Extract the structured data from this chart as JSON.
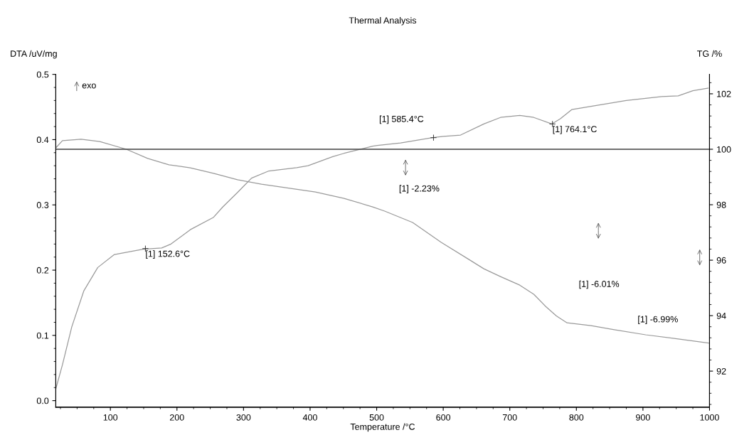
{
  "chart_data": {
    "type": "line",
    "title": "Thermal Analysis",
    "xlabel": "Temperature /°C",
    "ylabel": "DTA /uV/mg",
    "y2label": "TG /%",
    "xlim": [
      18,
      1000
    ],
    "xticks": [
      100,
      200,
      300,
      400,
      500,
      600,
      700,
      800,
      900,
      1000
    ],
    "ylim": [
      -0.01,
      0.5
    ],
    "yticks": [
      {
        "value": 0,
        "label": "0.0"
      },
      0.1,
      0.2,
      0.3,
      0.4,
      0.5
    ],
    "y2lim": [
      90.7,
      102.7
    ],
    "y2ticks": [
      92,
      94,
      96,
      98,
      100,
      102
    ],
    "grid": false,
    "series": [
      {
        "color": "#9a9a9a",
        "x": [
          18,
          28,
          42,
          60,
          81,
          106,
          149,
          177,
          191,
          220,
          255,
          269,
          291,
          312,
          338,
          380,
          397,
          434,
          451,
          494,
          501,
          536,
          584,
          600,
          626,
          661,
          686,
          715,
          736,
          763,
          776,
          793,
          822,
          875,
          928,
          953,
          975,
          998
        ],
        "values": [
          0.018,
          0.055,
          0.113,
          0.168,
          0.204,
          0.224,
          0.232,
          0.234,
          0.24,
          0.262,
          0.281,
          0.297,
          0.319,
          0.341,
          0.352,
          0.357,
          0.36,
          0.374,
          0.379,
          0.39,
          0.391,
          0.395,
          0.403,
          0.405,
          0.407,
          0.424,
          0.434,
          0.437,
          0.434,
          0.424,
          0.432,
          0.446,
          0.451,
          0.46,
          0.466,
          0.467,
          0.475,
          0.479
        ]
      },
      {
        "color": "#9a9a9a",
        "axis": "y2",
        "x": [
          18,
          28,
          56,
          84,
          124,
          156,
          188,
          220,
          255,
          291,
          327,
          362,
          408,
          451,
          494,
          512,
          554,
          597,
          637,
          661,
          686,
          715,
          736,
          754,
          770,
          786,
          822,
          857,
          904,
          947,
          1000
        ],
        "values": [
          100.05,
          100.31,
          100.36,
          100.28,
          100.0,
          99.67,
          99.44,
          99.33,
          99.13,
          98.9,
          98.74,
          98.62,
          98.46,
          98.23,
          97.92,
          97.77,
          97.36,
          96.64,
          96.05,
          95.69,
          95.41,
          95.1,
          94.77,
          94.33,
          93.99,
          93.74,
          93.64,
          93.49,
          93.31,
          93.18,
          93.01
        ]
      }
    ],
    "ref_lines": [
      {
        "axis": "y2",
        "value": 100,
        "color": "#404040"
      }
    ],
    "annotations": [
      {
        "text": "[1] 152.6°C",
        "x": 152.6,
        "y": 0.233
      },
      {
        "text": "[1] 585.4°C",
        "x": 585.4,
        "y": 0.403
      },
      {
        "text": "[1] 764.1°C",
        "x": 764.1,
        "y": 0.424
      },
      "exo",
      "[1] -2.23%",
      "[1] -6.01%",
      "[1] -6.99%"
    ]
  }
}
